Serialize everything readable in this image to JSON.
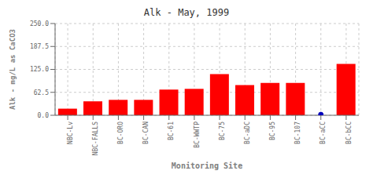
{
  "chart_data": {
    "type": "bar",
    "title": "Alk - May, 1999",
    "xlabel": "Monitoring Site",
    "ylabel": "Alk - mg/L as CaCO3",
    "categories": [
      "NBC-Lv",
      "NBC-FALLS",
      "BC-ORO",
      "BC-CAN",
      "BC-61",
      "BC-WWTP",
      "BC-75",
      "BC-aDC",
      "BC-95",
      "BC-107",
      "BC-aCC",
      "BC-bCC"
    ],
    "series": [
      {
        "type": "bar",
        "color": "#ff0000",
        "values": [
          18,
          38,
          42,
          42,
          70,
          72,
          112,
          82,
          88,
          88,
          0,
          140
        ]
      },
      {
        "type": "scatter",
        "marker": "circle",
        "color": "#0000bb",
        "values": [
          null,
          null,
          null,
          null,
          null,
          null,
          null,
          null,
          null,
          null,
          2,
          null
        ]
      }
    ],
    "ylim": [
      0,
      250
    ],
    "yticks": [
      {
        "value": 0,
        "label": "0.0"
      },
      62.5,
      {
        "value": 125,
        "label": "125.0"
      },
      187.5,
      {
        "value": 250,
        "label": "250.0"
      }
    ],
    "grid": true
  }
}
